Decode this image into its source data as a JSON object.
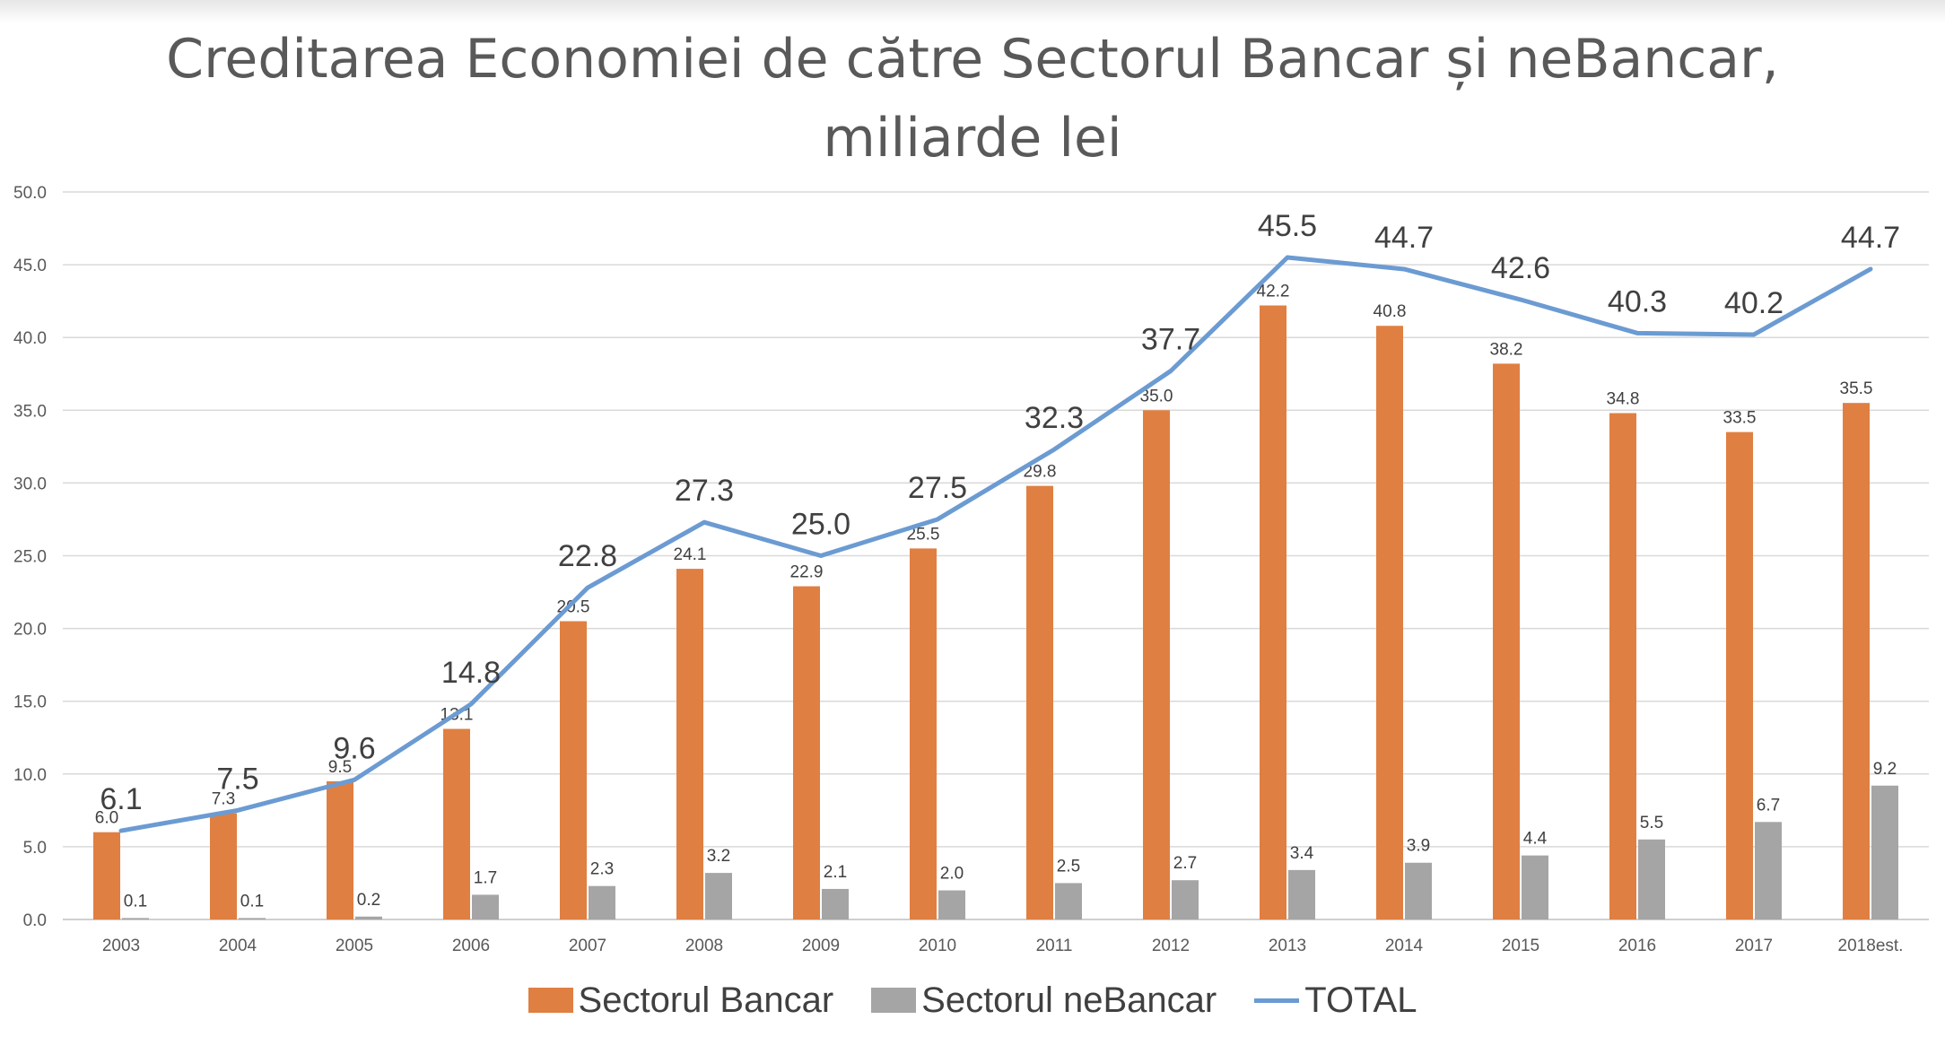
{
  "chart_data": {
    "type": "bar",
    "title_lines": [
      "Creditarea Economiei de către Sectorul Bancar și neBancar,",
      "miliarde lei"
    ],
    "categories": [
      "2003",
      "2004",
      "2005",
      "2006",
      "2007",
      "2008",
      "2009",
      "2010",
      "2011",
      "2012",
      "2013",
      "2014",
      "2015",
      "2016",
      "2017",
      "2018est."
    ],
    "series": [
      {
        "name": "Sectorul Bancar",
        "type": "bar",
        "color": "#E07F42",
        "values": [
          6.0,
          7.3,
          9.5,
          13.1,
          20.5,
          24.1,
          22.9,
          25.5,
          29.8,
          35.0,
          42.2,
          40.8,
          38.2,
          34.8,
          33.5,
          35.5
        ]
      },
      {
        "name": "Sectorul neBancar",
        "type": "bar",
        "color": "#A5A5A5",
        "values": [
          0.1,
          0.1,
          0.2,
          1.7,
          2.3,
          3.2,
          2.1,
          2.0,
          2.5,
          2.7,
          3.4,
          3.9,
          4.4,
          5.5,
          6.7,
          9.2
        ]
      },
      {
        "name": "TOTAL",
        "type": "line",
        "color": "#6B9BD2",
        "values": [
          6.1,
          7.5,
          9.6,
          14.8,
          22.8,
          27.3,
          25.0,
          27.5,
          32.3,
          37.7,
          45.5,
          44.7,
          42.6,
          40.3,
          40.2,
          44.7
        ]
      }
    ],
    "ylim": [
      0,
      50
    ],
    "yticks": [
      "0.0",
      "5.0",
      "10.0",
      "15.0",
      "20.0",
      "25.0",
      "30.0",
      "35.0",
      "40.0",
      "45.0",
      "50.0"
    ],
    "grid": true,
    "legend_position": "bottom"
  }
}
